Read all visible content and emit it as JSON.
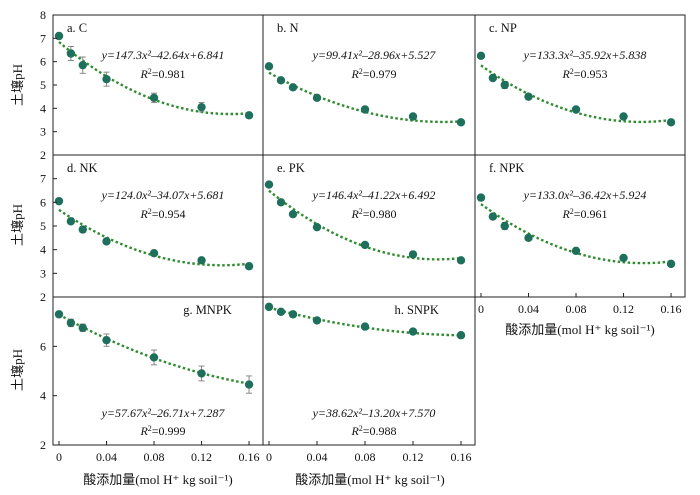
{
  "chart_data": {
    "type": "scatter",
    "layout": "3x3 grid of panels, 8 panels, bottom-right empty",
    "ylabel": "土壤pH",
    "xlabel": "酸添加量(mol H⁺ kg soil⁻¹)",
    "x_ticks": [
      "0",
      "0.04",
      "0.08",
      "0.12",
      "0.16"
    ],
    "y_ticks_top": [
      "2",
      "3",
      "4",
      "5",
      "6",
      "7",
      "8"
    ],
    "y_ticks_bottom": [
      "2",
      "4",
      "6"
    ],
    "ylim_top": [
      2,
      8
    ],
    "ylim_bottom": [
      2,
      8
    ],
    "xlim": [
      0,
      0.165
    ],
    "marker_color": "#1e6f5c",
    "fit_color": "#2e8b2e",
    "errorbar_color": "#888888",
    "fit_style": "dotted quadratic",
    "grid": false,
    "panels": [
      {
        "label": "a. C",
        "equation_html": "y=147.3x²–42.64x+6.841",
        "r2_value": "=0.981",
        "x": [
          0,
          0.01,
          0.02,
          0.04,
          0.08,
          0.12,
          0.16
        ],
        "y": [
          7.1,
          6.35,
          5.85,
          5.25,
          4.45,
          4.05,
          3.7
        ],
        "err": [
          0.12,
          0.3,
          0.35,
          0.3,
          0.2,
          0.2,
          0.1
        ],
        "fit": [
          147.3,
          -42.64,
          6.841
        ]
      },
      {
        "label": "b. N",
        "equation_html": "y=99.41x²–28.96x+5.527",
        "r2_value": "=0.979",
        "x": [
          0,
          0.01,
          0.02,
          0.04,
          0.08,
          0.12,
          0.16
        ],
        "y": [
          5.8,
          5.2,
          4.9,
          4.45,
          3.95,
          3.65,
          3.4
        ],
        "err": [
          0,
          0,
          0,
          0,
          0,
          0,
          0
        ],
        "fit": [
          99.41,
          -28.96,
          5.527
        ]
      },
      {
        "label": "c. NP",
        "equation_html": "y=133.3x²–35.92x+5.838",
        "r2_value": "=0.953",
        "x": [
          0,
          0.01,
          0.02,
          0.04,
          0.08,
          0.12,
          0.16
        ],
        "y": [
          6.25,
          5.3,
          5.0,
          4.5,
          3.95,
          3.65,
          3.4
        ],
        "err": [
          0,
          0,
          0.15,
          0,
          0,
          0,
          0
        ],
        "fit": [
          133.3,
          -35.92,
          5.838
        ]
      },
      {
        "label": "d. NK",
        "equation_html": "y=124.0x²–34.07x+5.681",
        "r2_value": "=0.954",
        "x": [
          0,
          0.01,
          0.02,
          0.04,
          0.08,
          0.12,
          0.16
        ],
        "y": [
          6.05,
          5.2,
          4.85,
          4.35,
          3.85,
          3.55,
          3.3
        ],
        "err": [
          0,
          0,
          0.12,
          0,
          0,
          0,
          0
        ],
        "fit": [
          124.0,
          -34.07,
          5.681
        ]
      },
      {
        "label": "e. PK",
        "equation_html": "y=146.4x²–41.22x+6.492",
        "r2_value": "=0.980",
        "x": [
          0,
          0.01,
          0.02,
          0.04,
          0.08,
          0.12,
          0.16
        ],
        "y": [
          6.75,
          6.0,
          5.5,
          4.95,
          4.2,
          3.8,
          3.55
        ],
        "err": [
          0,
          0,
          0,
          0,
          0,
          0,
          0
        ],
        "fit": [
          146.4,
          -41.22,
          6.492
        ]
      },
      {
        "label": "f. NPK",
        "equation_html": "y=133.0x²–36.42x+5.924",
        "r2_value": "=0.961",
        "x": [
          0,
          0.01,
          0.02,
          0.04,
          0.08,
          0.12,
          0.16
        ],
        "y": [
          6.2,
          5.4,
          5.0,
          4.5,
          3.95,
          3.65,
          3.4
        ],
        "err": [
          0,
          0,
          0.15,
          0,
          0,
          0,
          0
        ],
        "fit": [
          133.0,
          -36.42,
          5.924
        ]
      },
      {
        "label": "g. MNPK",
        "equation_html": "y=57.67x²–26.71x+7.287",
        "r2_value": "=0.999",
        "x": [
          0,
          0.01,
          0.02,
          0.04,
          0.08,
          0.12,
          0.16
        ],
        "y": [
          7.3,
          6.95,
          6.75,
          6.25,
          5.55,
          4.9,
          4.45
        ],
        "err": [
          0.1,
          0.15,
          0.15,
          0.25,
          0.3,
          0.3,
          0.35
        ],
        "fit": [
          57.67,
          -26.71,
          7.287
        ]
      },
      {
        "label": "h. SNPK",
        "equation_html": "y=38.62x²–13.20x+7.570",
        "r2_value": "=0.988",
        "x": [
          0,
          0.01,
          0.02,
          0.04,
          0.08,
          0.12,
          0.16
        ],
        "y": [
          7.6,
          7.4,
          7.3,
          7.05,
          6.8,
          6.6,
          6.45
        ],
        "err": [
          0,
          0,
          0,
          0,
          0,
          0,
          0
        ],
        "fit": [
          38.62,
          -13.2,
          7.57
        ]
      }
    ]
  }
}
